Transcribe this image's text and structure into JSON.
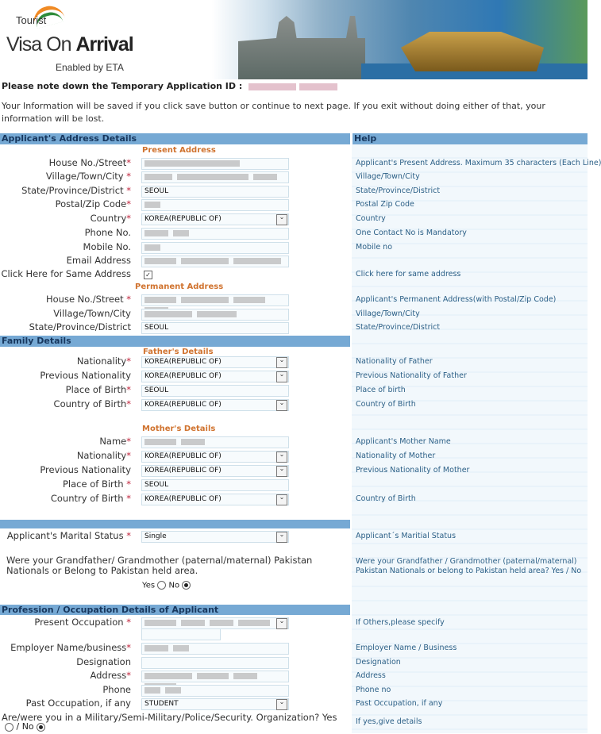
{
  "banner": {
    "logo_top": "Tourist",
    "logo_main_a": "Visa On ",
    "logo_main_b": "Arrival",
    "logo_sub": "Enabled by ETA"
  },
  "notice": {
    "id_label": "Please note down the Temporary Application ID :",
    "info": "Your Information will be saved if you click save button or continue to next page. If you exit without doing either of that, your information will be lost."
  },
  "address": {
    "header": "Applicant's Address Details",
    "help_header": "Help",
    "present_title": "Present Address",
    "permanent_title": "Permanent Address",
    "rows": [
      {
        "label": "House No./Street",
        "req": "*",
        "value": "",
        "type": "text",
        "help": "Applicant's Present Address. Maximum 35 characters (Each Line)"
      },
      {
        "label": "Village/Town/City",
        "req": " *",
        "value": "",
        "type": "text",
        "help": "Village/Town/City"
      },
      {
        "label": "State/Province/District",
        "req": " *",
        "value": "SEOUL",
        "type": "text",
        "help": "State/Province/District"
      },
      {
        "label": "Postal/Zip Code",
        "req": "*",
        "value": "",
        "type": "text",
        "help": "Postal Zip Code"
      },
      {
        "label": "Country",
        "req": "*",
        "value": "KOREA(REPUBLIC OF)",
        "type": "select",
        "help": "Country"
      },
      {
        "label": "Phone No.",
        "req": "",
        "value": "",
        "type": "text",
        "help": "One Contact No is Mandatory"
      },
      {
        "label": "Mobile No.",
        "req": "",
        "value": "",
        "type": "text",
        "help": "Mobile no"
      },
      {
        "label": "Email Address",
        "req": "",
        "value": "",
        "type": "text",
        "help": ""
      },
      {
        "label": "Click Here for Same Address",
        "req": "",
        "value": "",
        "type": "check",
        "help": "Click here for same address"
      },
      {
        "label": "House No./Street",
        "req": " *",
        "value": "",
        "type": "text",
        "help": "Applicant's Permanent Address(with Postal/Zip Code)"
      },
      {
        "label": "Village/Town/City",
        "req": "",
        "value": "",
        "type": "text",
        "help": "Village/Town/City"
      },
      {
        "label": "State/Province/District",
        "req": "",
        "value": "SEOUL",
        "type": "text",
        "help": "State/Province/District"
      }
    ]
  },
  "family": {
    "header": "Family Details",
    "father_title": "Father's Details",
    "mother_title": "Mother's Details",
    "father": [
      {
        "label": "Nationality",
        "req": "*",
        "value": "KOREA(REPUBLIC OF)",
        "type": "select",
        "help": "Nationality of Father"
      },
      {
        "label": "Previous Nationality",
        "req": "",
        "value": "KOREA(REPUBLIC OF)",
        "type": "select",
        "help": "Previous Nationality of Father"
      },
      {
        "label": "Place of Birth",
        "req": "*",
        "value": "SEOUL",
        "type": "text",
        "help": "Place of birth"
      },
      {
        "label": "Country of Birth",
        "req": "*",
        "value": "KOREA(REPUBLIC OF)",
        "type": "select",
        "help": "Country of Birth"
      }
    ],
    "mother": [
      {
        "label": "Name",
        "req": "*",
        "value": "",
        "type": "text",
        "help": "Applicant's Mother Name"
      },
      {
        "label": "Nationality",
        "req": "*",
        "value": "KOREA(REPUBLIC OF)",
        "type": "select",
        "help": "Nationality of Mother"
      },
      {
        "label": "Previous Nationality",
        "req": "",
        "value": "KOREA(REPUBLIC OF)",
        "type": "select",
        "help": "Previous Nationality of Mother"
      },
      {
        "label": "Place of Birth",
        "req": " *",
        "value": "SEOUL",
        "type": "text",
        "help": ""
      },
      {
        "label": "Country of Birth",
        "req": " *",
        "value": "KOREA(REPUBLIC OF)",
        "type": "select",
        "help": "Country of Birth"
      }
    ]
  },
  "marital": {
    "label": "Applicant's Marital Status",
    "req": " *",
    "value": "Single",
    "type": "select",
    "help": "Applicant´s Maritial Status"
  },
  "grandparent": {
    "question": "Were your Grandfather/ Grandmother (paternal/maternal) Pakistan Nationals or Belong to Pakistan held area.",
    "help": "Were your Grandfather / Grandmother (paternal/maternal) Pakistan Nationals or belong to Pakistan held area? Yes / No",
    "yes": "Yes",
    "no": "No",
    "selected": "No"
  },
  "profession": {
    "header": "Profession / Occupation Details of Applicant",
    "rows": [
      {
        "label": "Present Occupation",
        "req": " *",
        "value": "",
        "type": "select",
        "help": "If Others,please specify"
      },
      {
        "label": "Employer Name/business",
        "req": "*",
        "value": "",
        "type": "text",
        "help": "Employer Name / Business"
      },
      {
        "label": "Designation",
        "req": "",
        "value": "",
        "type": "text",
        "help": "Designation"
      },
      {
        "label": "Address",
        "req": "*",
        "value": "",
        "type": "text",
        "help": "Address"
      },
      {
        "label": "Phone",
        "req": "",
        "value": "",
        "type": "text",
        "help": "Phone no"
      },
      {
        "label": "Past Occupation, if any",
        "req": "",
        "value": "STUDENT",
        "type": "select",
        "help": "Past Occupation, if any"
      }
    ],
    "military_question": "Are/were you in a Military/Semi-Military/Police/Security. Organization? Yes",
    "military_no": "/ No",
    "military_selected": "No",
    "military_help": "If yes,give details"
  }
}
